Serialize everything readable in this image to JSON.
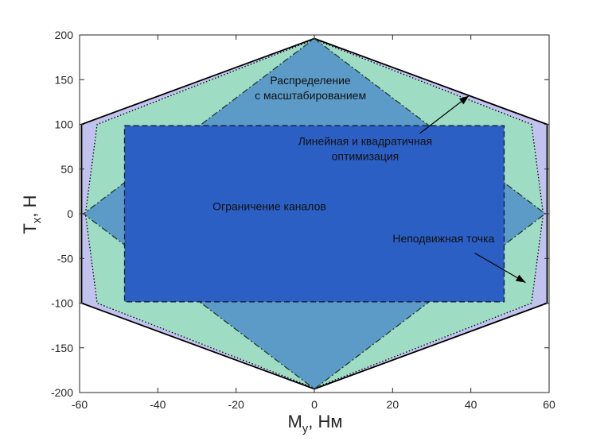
{
  "chart_data": {
    "type": "area",
    "xlabel": {
      "main": "M",
      "sub": "y",
      "rest": ", Нм"
    },
    "ylabel": {
      "main": "T",
      "sub": "x",
      "rest": ", Н"
    },
    "xlim": [
      -60,
      60
    ],
    "ylim": [
      -200,
      200
    ],
    "xticks": [
      -60,
      -40,
      -20,
      0,
      20,
      40,
      60
    ],
    "yticks": [
      -200,
      -150,
      -100,
      -50,
      0,
      50,
      100,
      150,
      200
    ],
    "xtick_labels": [
      "-60",
      "-40",
      "-20",
      "0",
      "20",
      "40",
      "60"
    ],
    "ytick_labels": [
      "-200",
      "-150",
      "-100",
      "-50",
      "0",
      "50",
      "100",
      "150",
      "200"
    ],
    "grid": false,
    "series": [
      {
        "name": "Неподвижная точка",
        "fill": "#c2c2ee",
        "stroke": "#000000",
        "line_style": "solid",
        "points": [
          [
            0,
            196
          ],
          [
            59.5,
            100
          ],
          [
            59.5,
            -100
          ],
          [
            0,
            -196
          ],
          [
            -59.5,
            -100
          ],
          [
            -59.5,
            100
          ]
        ]
      },
      {
        "name": "Линейная и квадратичная оптимизация",
        "fill": "#9fdcc4",
        "stroke": "#000000",
        "line_style": "dotted",
        "points": [
          [
            0,
            195
          ],
          [
            55.5,
            100
          ],
          [
            58.5,
            0
          ],
          [
            55.5,
            -100
          ],
          [
            0,
            -195
          ],
          [
            -55.5,
            -100
          ],
          [
            -58.5,
            0
          ],
          [
            -55.5,
            100
          ]
        ]
      },
      {
        "name": "Распределение с масштабированием",
        "fill": "#5c9bc8",
        "stroke": "#1f3d2c",
        "line_style": "dashdot",
        "points": [
          [
            0,
            196
          ],
          [
            59,
            0
          ],
          [
            0,
            -196
          ],
          [
            -59,
            0
          ]
        ]
      },
      {
        "name": "Ограничение каналов",
        "fill": "#2b5fc4",
        "stroke": "#0f1e3a",
        "line_style": "dashed",
        "points": [
          [
            -48.5,
            98.5
          ],
          [
            48.5,
            98.5
          ],
          [
            48.5,
            -98.5
          ],
          [
            -48.5,
            -98.5
          ]
        ]
      }
    ],
    "annotations": [
      {
        "lines": [
          "Распределение",
          "с масштабированием"
        ],
        "x": -1,
        "y": 145,
        "anchor": "middle"
      },
      {
        "lines": [
          "Линейная и квадратичная",
          "оптимизация"
        ],
        "x": 13,
        "y": 77,
        "anchor": "middle"
      },
      {
        "lines": [
          "Ограничение каналов"
        ],
        "x": -11.5,
        "y": 4,
        "anchor": "middle"
      },
      {
        "lines": [
          "Неподвижная точка"
        ],
        "x": 20,
        "y": -32,
        "anchor": "start"
      }
    ],
    "arrows": [
      {
        "from": [
          27,
          90
        ],
        "to": [
          39.5,
          132
        ]
      },
      {
        "from": [
          41,
          -44
        ],
        "to": [
          54,
          -77
        ]
      }
    ]
  }
}
